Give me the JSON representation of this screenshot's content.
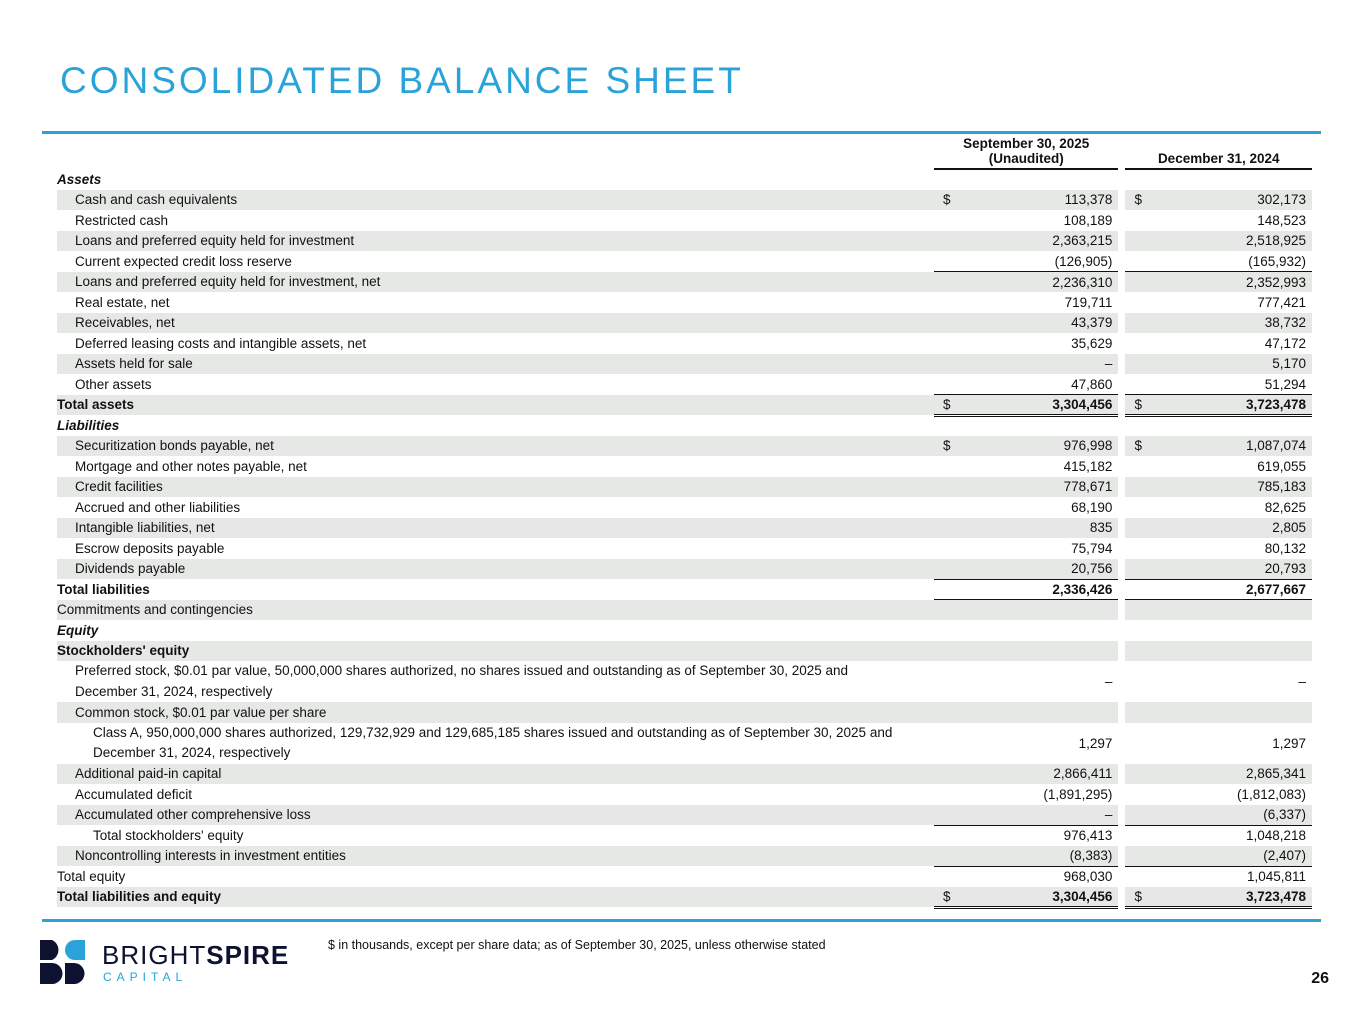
{
  "title": "CONSOLIDATED BALANCE SHEET",
  "columns": {
    "c1_line1": "September 30, 2025",
    "c1_line2": "(Unaudited)",
    "c2": "December 31, 2024"
  },
  "rows": [
    {
      "label": "Assets",
      "style": "i",
      "lvl": 0,
      "c1": "",
      "c2": ""
    },
    {
      "label": "Cash and cash equivalents",
      "lvl": 1,
      "d1": "$",
      "c1": "113,378",
      "d2": "$",
      "c2": "302,173"
    },
    {
      "label": "Restricted cash",
      "lvl": 1,
      "c1": "108,189",
      "c2": "148,523"
    },
    {
      "label": "Loans and preferred equity held for investment",
      "lvl": 1,
      "c1": "2,363,215",
      "c2": "2,518,925"
    },
    {
      "label": "Current expected credit loss reserve",
      "lvl": 1,
      "c1": "(126,905)",
      "c2": "(165,932)",
      "line": "ub"
    },
    {
      "label": "Loans and preferred equity held for investment, net",
      "lvl": 1,
      "c1": "2,236,310",
      "c2": "2,352,993"
    },
    {
      "label": "Real estate, net",
      "lvl": 1,
      "c1": "719,711",
      "c2": "777,421"
    },
    {
      "label": "Receivables, net",
      "lvl": 1,
      "c1": "43,379",
      "c2": "38,732"
    },
    {
      "label": "Deferred leasing costs and intangible assets, net",
      "lvl": 1,
      "c1": "35,629",
      "c2": "47,172"
    },
    {
      "label": "Assets held for sale",
      "lvl": 1,
      "c1": "–",
      "c2": "5,170"
    },
    {
      "label": "Other assets",
      "lvl": 1,
      "c1": "47,860",
      "c2": "51,294",
      "line": "ub"
    },
    {
      "label": "Total assets",
      "style": "b",
      "lvl": 0,
      "d1": "$",
      "c1": "3,304,456",
      "d2": "$",
      "c2": "3,723,478",
      "line": "db"
    },
    {
      "label": "Liabilities",
      "style": "i",
      "lvl": 0,
      "c1": "",
      "c2": ""
    },
    {
      "label": "Securitization bonds payable, net",
      "lvl": 1,
      "d1": "$",
      "c1": "976,998",
      "d2": "$",
      "c2": "1,087,074"
    },
    {
      "label": "Mortgage and other notes payable, net",
      "lvl": 1,
      "c1": "415,182",
      "c2": "619,055"
    },
    {
      "label": "Credit facilities",
      "lvl": 1,
      "c1": "778,671",
      "c2": "785,183"
    },
    {
      "label": "Accrued and other liabilities",
      "lvl": 1,
      "c1": "68,190",
      "c2": "82,625"
    },
    {
      "label": "Intangible liabilities, net",
      "lvl": 1,
      "c1": "835",
      "c2": "2,805"
    },
    {
      "label": "Escrow deposits payable",
      "lvl": 1,
      "c1": "75,794",
      "c2": "80,132"
    },
    {
      "label": "Dividends payable",
      "lvl": 1,
      "c1": "20,756",
      "c2": "20,793",
      "line": "ub"
    },
    {
      "label": "Total liabilities",
      "style": "b",
      "lvl": 0,
      "c1": "2,336,426",
      "c2": "2,677,667",
      "line": "ub"
    },
    {
      "label": "Commitments and contingencies",
      "lvl": 0,
      "c1": "",
      "c2": ""
    },
    {
      "label": "Equity",
      "style": "i",
      "lvl": 0,
      "c1": "",
      "c2": ""
    },
    {
      "label": "Stockholders' equity",
      "style": "b",
      "lvl": 0,
      "c1": "",
      "c2": ""
    },
    {
      "label": "Preferred stock, $0.01 par value, 50,000,000 shares authorized, no shares issued and outstanding as of September 30, 2025 and December 31, 2024, respectively",
      "lvl": 1,
      "wrap": true,
      "c1": "–",
      "c2": "–"
    },
    {
      "label": "Common stock, $0.01 par value per share",
      "lvl": 1,
      "c1": "",
      "c2": ""
    },
    {
      "label": "Class A, 950,000,000 shares authorized, 129,732,929 and 129,685,185 shares issued and outstanding as of September 30, 2025 and December 31, 2024, respectively",
      "lvl": 2,
      "wrap": true,
      "c1": "1,297",
      "c2": "1,297"
    },
    {
      "label": "Additional paid-in capital",
      "lvl": 1,
      "c1": "2,866,411",
      "c2": "2,865,341"
    },
    {
      "label": "Accumulated deficit",
      "lvl": 1,
      "c1": "(1,891,295)",
      "c2": "(1,812,083)"
    },
    {
      "label": "Accumulated other comprehensive loss",
      "lvl": 1,
      "c1": "–",
      "c2": "(6,337)",
      "line": "ub"
    },
    {
      "label": "Total stockholders' equity",
      "lvl": 2,
      "c1": "976,413",
      "c2": "1,048,218"
    },
    {
      "label": "Noncontrolling interests in investment entities",
      "lvl": 1,
      "c1": "(8,383)",
      "c2": "(2,407)",
      "line": "ub"
    },
    {
      "label": "Total equity",
      "lvl": 0,
      "c1": "968,030",
      "c2": "1,045,811"
    },
    {
      "label": "Total liabilities and equity",
      "style": "b",
      "lvl": 0,
      "d1": "$",
      "c1": "3,304,456",
      "d2": "$",
      "c2": "3,723,478",
      "line": "db"
    }
  ],
  "footnote": "$ in thousands, except per share data; as of September 30, 2025, unless otherwise stated",
  "logo": {
    "word1": "BRIGHT",
    "word2": "SPIRE",
    "sub": "CAPITAL"
  },
  "page_number": "26",
  "colors": {
    "accent": "#2aa3d8",
    "row_shade": "#e6e8e6",
    "logo_dark": "#0d1230"
  }
}
